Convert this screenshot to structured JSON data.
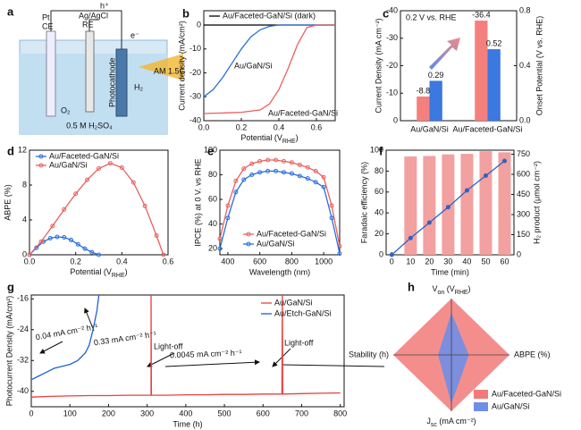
{
  "diagram": {
    "label": "a",
    "texts": {
      "pt": "Pt",
      "ce": "CE",
      "ref": "Ag/AgCl",
      "re": "RE",
      "hole": "h⁺",
      "electron": "e⁻",
      "photocathode": "Photocathode",
      "h2": "H₂",
      "light": "AM 1.5G",
      "o2": "O₂",
      "electrolyte": "0.5 M H₂SO₄"
    }
  },
  "chart_data": [
    {
      "type": "line",
      "label": "b",
      "x_label": [
        "Potential (V",
        "RHE",
        ")"
      ],
      "y_label": "Current density (mA/cm²)",
      "xlim": [
        0,
        0.7
      ],
      "xticks": [
        {
          "value": 0,
          "label": "0.0"
        },
        0.2,
        0.4,
        0.6
      ],
      "ylim": [
        -40,
        6
      ],
      "yticks": [
        0,
        -10,
        -20,
        -30,
        -40
      ],
      "series": [
        {
          "name": "Au/Faceted-GaN/Si (dark)",
          "color": "#000000",
          "x": [
            0,
            0.1,
            0.2,
            0.3,
            0.4,
            0.5,
            0.6,
            0.7
          ],
          "values": [
            0,
            0,
            0,
            0,
            0,
            0,
            0,
            0
          ]
        },
        {
          "name": "Au/GaN/Si",
          "color": "#2a6fdb",
          "x": [
            0,
            0.05,
            0.1,
            0.15,
            0.2,
            0.25,
            0.3,
            0.35,
            0.4,
            0.5,
            0.6,
            0.7
          ],
          "values": [
            -30,
            -27,
            -22,
            -16,
            -10,
            -5,
            -2,
            -0.5,
            0,
            0,
            0,
            0
          ]
        },
        {
          "name": "Au/Faceted-GaN/Si",
          "color": "#e8605f",
          "x": [
            0,
            0.1,
            0.2,
            0.3,
            0.35,
            0.4,
            0.45,
            0.5,
            0.55,
            0.6,
            0.7
          ],
          "values": [
            -37,
            -36.8,
            -36.5,
            -35.5,
            -33,
            -27,
            -18,
            -8,
            -1,
            0,
            0
          ]
        }
      ]
    },
    {
      "type": "bar",
      "label": "c",
      "annotation": "0.2 V vs. RHE",
      "categories": [
        "Au/GaN/Si",
        "Au/Faceted-GaN/Si"
      ],
      "y_label": "Current Density (mA cm⁻²)",
      "y2_label": "Onset Potential (V vs. RHE)",
      "ylim": [
        0,
        -40
      ],
      "yticks": [
        0,
        -10,
        -20,
        -30,
        -40
      ],
      "y2lim": [
        0,
        0.8
      ],
      "y2ticks": [
        {
          "value": 0,
          "label": "0.0"
        },
        0.4,
        0.8
      ],
      "series": [
        {
          "color": "#f4807d",
          "values": [
            -8.8,
            -36.4
          ]
        },
        {
          "color": "#3b78e0",
          "values": [
            0.29,
            0.52
          ],
          "axis": "y2"
        }
      ]
    },
    {
      "type": "line",
      "label": "d",
      "x_label": [
        "Potential (V",
        "RHE",
        ")"
      ],
      "y_label": "ABPE (%)",
      "xlim": [
        0,
        0.6
      ],
      "xticks": [
        {
          "value": 0,
          "label": "0.0"
        },
        0.2,
        0.4,
        0.6
      ],
      "ylim": [
        0,
        12
      ],
      "yticks": [
        0,
        4,
        8,
        12
      ],
      "series": [
        {
          "name": "Au/Faceted-GaN/Si",
          "color": "#2a6fdb",
          "markers": true,
          "x": [
            0,
            0.03,
            0.06,
            0.09,
            0.12,
            0.15,
            0.18,
            0.21,
            0.24,
            0.27,
            0.3
          ],
          "values": [
            0,
            0.8,
            1.5,
            1.9,
            2.05,
            2,
            1.7,
            1.2,
            0.7,
            0.3,
            0
          ]
        },
        {
          "name": "Au/GaN/Si",
          "color": "#e8605f",
          "markers": true,
          "x": [
            0,
            0.05,
            0.1,
            0.15,
            0.2,
            0.25,
            0.3,
            0.35,
            0.4,
            0.45,
            0.5,
            0.55,
            0.58
          ],
          "values": [
            0,
            1.5,
            3.3,
            5.2,
            7,
            8.6,
            9.9,
            10.5,
            10,
            8.3,
            5.6,
            2.2,
            0
          ]
        }
      ]
    },
    {
      "type": "line",
      "label": "e",
      "x_label": "Wavelength (nm)",
      "y_label": "IPCE (%) at 0 V. vs RHE",
      "xlim": [
        350,
        1100
      ],
      "xticks": [
        400,
        600,
        800,
        1000
      ],
      "ylim": [
        15,
        100
      ],
      "yticks": [
        20,
        40,
        60,
        80,
        100
      ],
      "series": [
        {
          "name": "Au/Faceted-GaN/Si",
          "color": "#e8605f",
          "markers": true,
          "x": [
            350,
            400,
            450,
            500,
            550,
            600,
            650,
            700,
            750,
            800,
            850,
            900,
            950,
            1000,
            1050,
            1100
          ],
          "values": [
            28,
            55,
            75,
            85,
            89,
            91,
            92,
            92,
            91,
            90,
            88,
            86,
            83,
            78,
            55,
            22
          ]
        },
        {
          "name": "Au/GaN/Si",
          "color": "#2a6fdb",
          "markers": true,
          "x": [
            350,
            400,
            450,
            500,
            550,
            600,
            650,
            700,
            750,
            800,
            850,
            900,
            950,
            1000,
            1050,
            1100
          ],
          "values": [
            20,
            45,
            66,
            76,
            80,
            82,
            83,
            83,
            82,
            81,
            79,
            77,
            74,
            70,
            45,
            16
          ]
        }
      ]
    },
    {
      "type": "bar",
      "label": "f",
      "x_label": "Time (min)",
      "y_label": "Faradaic efficiency (%)",
      "y2_label": "H₂ product (μmol cm⁻²)",
      "xlim": [
        -3,
        65
      ],
      "xticks": [
        0,
        10,
        20,
        30,
        40,
        50,
        60
      ],
      "ylim": [
        0,
        100
      ],
      "yticks": [
        0,
        20,
        40,
        60,
        80,
        100
      ],
      "y2lim": [
        0,
        780
      ],
      "y2ticks": [
        0,
        150,
        300,
        450,
        600,
        750
      ],
      "series": [
        {
          "color": "#f3a0a0",
          "x": [
            10,
            20,
            30,
            40,
            50,
            60
          ],
          "values": [
            94,
            94.5,
            96,
            96.5,
            99,
            98
          ]
        },
        {
          "type": "line",
          "color": "#2c63c4",
          "markers": true,
          "axis": "y2",
          "x": [
            0,
            10,
            20,
            30,
            40,
            50,
            60
          ],
          "values": [
            0,
            125,
            240,
            355,
            480,
            590,
            700
          ]
        }
      ]
    },
    {
      "type": "line",
      "label": "g",
      "x_label": "Time (h)",
      "y_label": "Photocurrent Density (mA/cm²)",
      "xlim": [
        0,
        810
      ],
      "xticks": [
        0,
        100,
        200,
        300,
        400,
        500,
        600,
        700,
        800
      ],
      "ylim": [
        -44,
        -15
      ],
      "yticks": [
        -16,
        -24,
        -32,
        -40
      ],
      "annotations": [
        "0.04 mA cm⁻² h⁻¹",
        "0.33 mA cm⁻² h⁻¹",
        "Light-off",
        "0.0045 mA cm⁻² h⁻¹",
        "Light-off"
      ],
      "series": [
        {
          "name": "Au/GaN/Si",
          "color": "#e8403f",
          "x": [
            0,
            50,
            100,
            150,
            200,
            250,
            300,
            310,
            310,
            311,
            350,
            400,
            450,
            500,
            550,
            600,
            649,
            650,
            651,
            700,
            750,
            800
          ],
          "values": [
            -41.5,
            -41.3,
            -41.2,
            -41.1,
            -41.1,
            -41,
            -41,
            -41,
            -15,
            -41,
            -41,
            -40.9,
            -40.9,
            -40.8,
            -40.8,
            -40.7,
            -40.7,
            -15,
            -40.7,
            -40.6,
            -40.5,
            -40.4
          ]
        },
        {
          "name": "Au/Etch-GaN/Si",
          "color": "#1f5fd6",
          "x": [
            0,
            20,
            40,
            60,
            80,
            100,
            120,
            140,
            150,
            160,
            170,
            175
          ],
          "values": [
            -37,
            -36,
            -35,
            -34,
            -33.5,
            -33,
            -32,
            -30,
            -28,
            -24,
            -19,
            -15
          ]
        }
      ]
    },
    {
      "type": "radar",
      "label": "h",
      "rlim": [
        0,
        1
      ],
      "axes": [
        [
          "V",
          "on",
          " (V",
          "RHE",
          ")"
        ],
        "ABPE (%)",
        [
          "J",
          "sc",
          " (mA cm⁻²)"
        ],
        "Stability (h)"
      ],
      "series": [
        {
          "name": "Au/Faceted-GaN/Si",
          "color": "#f27a78",
          "values": [
            1,
            1,
            1,
            1
          ]
        },
        {
          "name": "Au/GaN/Si",
          "color": "#6f8ee6",
          "values": [
            0.75,
            0.3,
            0.87,
            0.23
          ]
        }
      ]
    }
  ]
}
